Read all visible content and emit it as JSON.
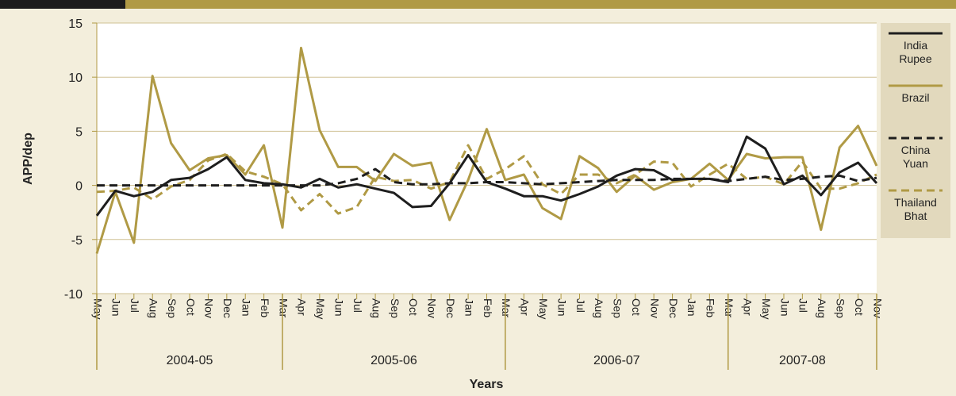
{
  "chart_data": {
    "type": "line",
    "y_label": "APP/dep",
    "x_label": "Years",
    "ylim": [
      -10,
      15
    ],
    "yticks": [
      -10,
      -5,
      0,
      5,
      10,
      15
    ],
    "grid": true,
    "legend": "right",
    "groups": [
      {
        "label": "2004-05",
        "categories": [
          "May",
          "Jun",
          "Jul",
          "Aug",
          "Sep",
          "Oct",
          "Nov",
          "Dec",
          "Jan",
          "Feb",
          "Mar"
        ]
      },
      {
        "label": "2005-06",
        "categories": [
          "Apr",
          "May",
          "Jun",
          "Jul",
          "Aug",
          "Sep",
          "Oct",
          "Nov",
          "Dec",
          "Jan",
          "Feb",
          "Mar"
        ]
      },
      {
        "label": "2006-07",
        "categories": [
          "Apr",
          "May",
          "Jun",
          "Jul",
          "Aug",
          "Sep",
          "Oct",
          "Nov",
          "Dec",
          "Jan",
          "Feb",
          "Mar"
        ]
      },
      {
        "label": "2007-08",
        "categories": [
          "Apr",
          "May",
          "Jun",
          "Jul",
          "Aug",
          "Sep",
          "Oct",
          "Nov"
        ]
      }
    ],
    "series": [
      {
        "name": "India Rupee",
        "color": "#1e1e1e",
        "dash": false,
        "values": [
          -2.8,
          -0.5,
          -1.0,
          -0.6,
          0.5,
          0.7,
          1.5,
          2.6,
          0.5,
          0.2,
          0.1,
          -0.2,
          0.6,
          -0.2,
          0.1,
          -0.3,
          -0.7,
          -2.0,
          -1.9,
          0.2,
          2.8,
          0.3,
          -0.3,
          -1.0,
          -1.0,
          -1.4,
          -0.8,
          -0.1,
          0.9,
          1.5,
          1.4,
          0.5,
          0.6,
          0.6,
          0.3,
          4.5,
          3.4,
          0.1,
          0.9,
          -0.9,
          1.2,
          2.1,
          0.2
        ]
      },
      {
        "name": "Brazil",
        "color": "#b09a45",
        "dash": false,
        "values": [
          -6.3,
          -0.6,
          -5.3,
          10.1,
          3.9,
          1.4,
          2.5,
          2.8,
          1.0,
          3.7,
          -3.9,
          12.7,
          5.1,
          1.7,
          1.7,
          0.4,
          2.9,
          1.8,
          2.1,
          -3.2,
          0.5,
          5.2,
          0.5,
          1.0,
          -2.1,
          -3.1,
          2.7,
          1.6,
          -0.6,
          0.9,
          -0.4,
          0.3,
          0.6,
          2.0,
          0.5,
          2.9,
          2.5,
          2.6,
          2.6,
          -4.1,
          3.5,
          5.5,
          1.8
        ]
      },
      {
        "name": "China Yuan",
        "color": "#1e1e1e",
        "dash": true,
        "values": [
          0,
          0,
          0,
          0,
          0,
          0,
          0,
          0,
          0,
          0,
          0,
          0,
          0,
          0.2,
          0.6,
          1.5,
          0.3,
          0.1,
          0.1,
          0.2,
          0.2,
          0.3,
          0.3,
          0.2,
          0.1,
          0.2,
          0.3,
          0.4,
          0.5,
          0.5,
          0.5,
          0.6,
          0.6,
          0.6,
          0.4,
          0.6,
          0.8,
          0.5,
          0.6,
          0.8,
          0.9,
          0.4,
          0.7
        ]
      },
      {
        "name": "Thailand Bhat",
        "color": "#b09a45",
        "dash": true,
        "values": [
          -0.6,
          -0.5,
          -0.2,
          -1.3,
          -0.1,
          0.5,
          2.3,
          2.9,
          1.3,
          0.8,
          0.1,
          -2.3,
          -0.8,
          -2.6,
          -2.0,
          0.8,
          0.4,
          0.5,
          -0.3,
          0.3,
          3.7,
          0.6,
          1.5,
          2.7,
          0.1,
          -0.8,
          1.0,
          1.0,
          0.2,
          1.0,
          2.2,
          2.1,
          -0.1,
          1.0,
          2.0,
          0.6,
          0.8,
          0.1,
          2.2,
          -0.3,
          -0.3,
          0.2,
          1.0
        ]
      }
    ]
  }
}
